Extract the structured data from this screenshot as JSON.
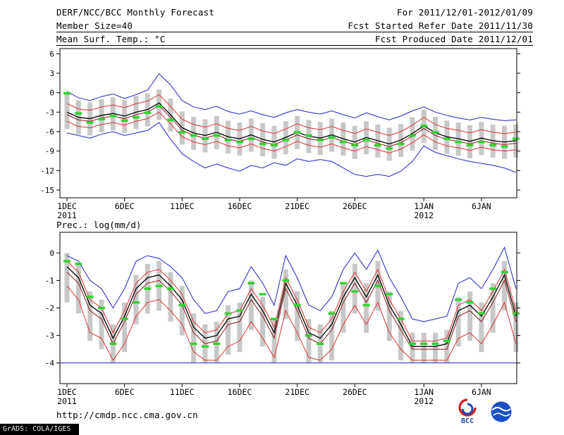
{
  "header": {
    "title": "DERF/NCC/BCC Monthly Forecast",
    "member_size": "Member Size=40",
    "forecast_range": "For 2011/12/01-2012/01/09",
    "refer_date": "Fcst Started Refer Date 2011/11/30",
    "produced_date": "Fcst Produced Date 2011/12/01"
  },
  "footer": {
    "url": "http://cmdp.ncc.cma.gov.cn",
    "bcc_logo_label": "BCC",
    "grads_credit": "GrADS: COLA/IGES"
  },
  "colors": {
    "envelope_blue": "#2222cc",
    "quartile_red": "#e03232",
    "mean_black": "#000000",
    "control_darkred": "#8b1a1a",
    "observation_green": "#2ed52e",
    "spread_gray": "#c8c8c8"
  },
  "chart_data": [
    {
      "name": "temperature",
      "type": "line",
      "title": "Mean Surf. Temp.: °C",
      "x_unit": "day",
      "n_days": 40,
      "ylim": [
        -15,
        6
      ],
      "yticks": [
        6,
        3,
        0,
        -3,
        -6,
        -9,
        -12,
        -15
      ],
      "xticks": [
        {
          "day_index": 0,
          "label": "1DEC",
          "sublabel": "2011"
        },
        {
          "day_index": 5,
          "label": "6DEC"
        },
        {
          "day_index": 10,
          "label": "11DEC"
        },
        {
          "day_index": 15,
          "label": "16DEC"
        },
        {
          "day_index": 20,
          "label": "21DEC"
        },
        {
          "day_index": 25,
          "label": "26DEC"
        },
        {
          "day_index": 31,
          "label": "1JAN",
          "sublabel": "2012"
        },
        {
          "day_index": 36,
          "label": "6JAN"
        }
      ],
      "bars": {
        "name": "ensemble-spread",
        "color": "#c8c8c8",
        "top": [
          -0.2,
          -1.2,
          -1.5,
          -1.0,
          -0.7,
          -1.1,
          -0.5,
          -0.1,
          0.5,
          -0.9,
          -2.9,
          -3.7,
          -4.1,
          -3.6,
          -4.3,
          -4.6,
          -4.0,
          -4.7,
          -5.1,
          -4.4,
          -3.6,
          -4.2,
          -4.5,
          -4.0,
          -4.6,
          -5.1,
          -4.4,
          -4.9,
          -5.4,
          -4.8,
          -3.8,
          -2.6,
          -3.7,
          -4.3,
          -4.6,
          -5.0,
          -4.5,
          -4.9,
          -5.1,
          -4.9
        ],
        "bottom": [
          -5.6,
          -6.4,
          -6.6,
          -6.1,
          -5.8,
          -6.2,
          -5.6,
          -5.2,
          -4.2,
          -6.0,
          -8.0,
          -8.8,
          -9.2,
          -8.7,
          -9.4,
          -9.7,
          -9.1,
          -9.8,
          -10.2,
          -9.5,
          -8.7,
          -9.3,
          -9.6,
          -9.1,
          -9.7,
          -10.2,
          -9.5,
          -10.0,
          -10.5,
          -9.9,
          -8.9,
          -7.7,
          -8.8,
          -9.4,
          -9.7,
          -10.1,
          -9.6,
          -10.0,
          -10.2,
          -10.0
        ]
      },
      "series": [
        {
          "name": "ensemble-max",
          "color": "#2222cc",
          "style": "line",
          "width": 1,
          "values": [
            0.2,
            -0.8,
            -1.2,
            -0.6,
            -0.2,
            -0.9,
            -0.3,
            0.4,
            2.9,
            1.2,
            -1.2,
            -2.2,
            -2.6,
            -2.1,
            -2.9,
            -3.3,
            -2.8,
            -3.4,
            -3.8,
            -3.1,
            -2.6,
            -3.0,
            -3.3,
            -2.8,
            -3.4,
            -3.9,
            -3.1,
            -3.7,
            -4.2,
            -3.6,
            -2.8,
            -2.2,
            -3.0,
            -3.5,
            -3.9,
            -4.2,
            -3.8,
            -4.1,
            -4.3,
            -4.2
          ]
        },
        {
          "name": "ensemble-min",
          "color": "#2222cc",
          "style": "line",
          "width": 1,
          "values": [
            -6.2,
            -6.6,
            -7.0,
            -6.4,
            -6.0,
            -6.6,
            -6.2,
            -5.8,
            -4.6,
            -7.2,
            -9.4,
            -10.6,
            -11.6,
            -11.0,
            -11.6,
            -12.1,
            -11.2,
            -11.6,
            -10.8,
            -11.2,
            -10.2,
            -10.6,
            -10.3,
            -10.6,
            -11.6,
            -12.6,
            -12.9,
            -12.6,
            -12.9,
            -12.1,
            -10.6,
            -8.2,
            -9.2,
            -9.7,
            -10.2,
            -10.6,
            -10.9,
            -11.2,
            -11.6,
            -12.3
          ]
        },
        {
          "name": "upper-quartile",
          "color": "#e03232",
          "style": "line",
          "width": 1,
          "values": [
            -1.7,
            -2.5,
            -2.7,
            -2.2,
            -1.9,
            -2.3,
            -1.7,
            -1.3,
            -0.3,
            -2.1,
            -4.1,
            -4.9,
            -5.3,
            -4.8,
            -5.5,
            -5.8,
            -5.2,
            -5.9,
            -6.3,
            -5.6,
            -4.8,
            -5.4,
            -5.7,
            -5.2,
            -5.8,
            -6.3,
            -5.6,
            -6.1,
            -6.6,
            -6.0,
            -5.0,
            -3.8,
            -4.9,
            -5.5,
            -5.8,
            -6.2,
            -5.7,
            -6.1,
            -6.3,
            -6.1
          ]
        },
        {
          "name": "lower-quartile",
          "color": "#e03232",
          "style": "line",
          "width": 1,
          "values": [
            -4.4,
            -5.2,
            -5.4,
            -4.9,
            -4.6,
            -5.0,
            -4.4,
            -4.0,
            -3.0,
            -4.8,
            -6.8,
            -7.6,
            -8.0,
            -7.5,
            -8.2,
            -8.5,
            -7.9,
            -8.6,
            -9.0,
            -8.3,
            -7.5,
            -8.1,
            -8.4,
            -7.9,
            -8.5,
            -9.0,
            -8.3,
            -8.8,
            -9.3,
            -8.7,
            -7.7,
            -6.5,
            -7.6,
            -8.2,
            -8.5,
            -8.9,
            -8.4,
            -8.8,
            -9.0,
            -8.8
          ]
        },
        {
          "name": "control-run",
          "color": "#8b1a1a",
          "style": "line",
          "width": 1,
          "values": [
            -3.4,
            -4.2,
            -4.4,
            -3.9,
            -3.6,
            -4.0,
            -3.4,
            -3.0,
            -2.0,
            -3.8,
            -5.8,
            -6.6,
            -7.0,
            -6.5,
            -7.2,
            -7.5,
            -6.9,
            -7.6,
            -8.0,
            -7.3,
            -6.5,
            -7.1,
            -7.4,
            -6.9,
            -7.5,
            -8.0,
            -7.3,
            -7.8,
            -8.3,
            -7.7,
            -6.7,
            -5.5,
            -6.6,
            -7.2,
            -7.5,
            -7.9,
            -7.4,
            -7.8,
            -8.0,
            -7.8
          ]
        },
        {
          "name": "ensemble-mean",
          "color": "#000000",
          "style": "line",
          "width": 1.3,
          "values": [
            -3.0,
            -3.8,
            -4.0,
            -3.5,
            -3.2,
            -3.6,
            -3.0,
            -2.6,
            -1.6,
            -3.4,
            -5.4,
            -6.2,
            -6.6,
            -6.1,
            -6.8,
            -7.1,
            -6.5,
            -7.2,
            -7.6,
            -6.9,
            -6.1,
            -6.7,
            -7.0,
            -6.5,
            -7.1,
            -7.6,
            -6.9,
            -7.4,
            -7.9,
            -7.3,
            -6.3,
            -5.1,
            -6.2,
            -6.8,
            -7.1,
            -7.5,
            -7.0,
            -7.4,
            -7.6,
            -7.4
          ]
        },
        {
          "name": "observation",
          "color": "#2ed52e",
          "style": "dash",
          "values": [
            -0.1,
            -3.2,
            -4.6,
            -4.1,
            -3.6,
            -4.3,
            -3.8,
            -3.1,
            -2.1,
            -4.2,
            -6.1,
            -6.6,
            -7.1,
            -6.6,
            -7.3,
            -7.6,
            -7.1,
            -7.9,
            -8.1,
            -7.3,
            -6.1,
            -6.6,
            -7.3,
            -6.9,
            -7.6,
            -8.1,
            -7.3,
            -8.1,
            -8.6,
            -7.9,
            -6.6,
            -5.1,
            -6.1,
            -7.1,
            -7.6,
            -8.1,
            -7.6,
            -8.1,
            -8.3,
            -7.1
          ]
        }
      ]
    },
    {
      "name": "precipitation",
      "type": "line",
      "title": "Prec.: log(mm/d)",
      "x_unit": "day",
      "n_days": 40,
      "ylim": [
        -4,
        0
      ],
      "yticks": [
        0,
        -1,
        -2,
        -3,
        -4
      ],
      "xticks": [
        {
          "day_index": 0,
          "label": "1DEC",
          "sublabel": "2011"
        },
        {
          "day_index": 5,
          "label": "6DEC"
        },
        {
          "day_index": 10,
          "label": "11DEC"
        },
        {
          "day_index": 15,
          "label": "16DEC"
        },
        {
          "day_index": 20,
          "label": "21DEC"
        },
        {
          "day_index": 25,
          "label": "26DEC"
        },
        {
          "day_index": 31,
          "label": "1JAN",
          "sublabel": "2012"
        },
        {
          "day_index": 36,
          "label": "6JAN"
        }
      ],
      "bars": {
        "name": "ensemble-spread",
        "color": "#c8c8c8",
        "top": [
          0.0,
          -0.4,
          -1.4,
          -1.7,
          -2.6,
          -1.8,
          -0.8,
          -0.4,
          -0.3,
          -0.7,
          -1.2,
          -2.2,
          -2.6,
          -2.5,
          -1.9,
          -1.8,
          -1.0,
          -1.6,
          -2.4,
          -0.6,
          -1.4,
          -2.4,
          -2.6,
          -2.1,
          -1.1,
          -0.4,
          -1.1,
          -0.3,
          -1.4,
          -2.1,
          -2.9,
          -2.9,
          -2.9,
          -2.8,
          -1.6,
          -1.4,
          -1.8,
          -1.1,
          -0.3,
          -1.8
        ],
        "bottom": [
          -1.8,
          -2.2,
          -3.2,
          -3.5,
          -4.0,
          -3.6,
          -2.6,
          -2.2,
          -2.1,
          -2.5,
          -3.0,
          -4.0,
          -4.0,
          -4.0,
          -3.7,
          -3.6,
          -2.8,
          -3.4,
          -4.0,
          -2.4,
          -3.2,
          -4.0,
          -4.0,
          -3.9,
          -2.9,
          -2.2,
          -2.9,
          -2.1,
          -3.2,
          -3.9,
          -4.0,
          -4.0,
          -4.0,
          -4.0,
          -3.4,
          -3.2,
          -3.6,
          -2.9,
          -2.1,
          -3.6
        ]
      },
      "series": [
        {
          "name": "ensemble-max",
          "color": "#2222cc",
          "style": "line",
          "width": 1,
          "values": [
            -0.1,
            -0.3,
            -1.0,
            -1.3,
            -2.0,
            -1.3,
            -0.3,
            -0.1,
            -0.2,
            -0.5,
            -0.9,
            -1.7,
            -2.2,
            -2.1,
            -1.4,
            -1.3,
            -0.5,
            -1.1,
            -1.9,
            -0.1,
            -0.9,
            -1.9,
            -2.1,
            -1.6,
            -0.6,
            0.0,
            -0.6,
            0.1,
            -0.9,
            -1.6,
            -2.4,
            -2.5,
            -2.4,
            -2.3,
            -1.1,
            -0.9,
            -1.3,
            -0.6,
            0.2,
            -1.3
          ]
        },
        {
          "name": "detection-floor",
          "color": "#2222cc",
          "style": "hline",
          "value": -4
        },
        {
          "name": "upper-quartile",
          "color": "#e03232",
          "style": "line",
          "width": 1,
          "values": [
            -0.3,
            -0.7,
            -1.7,
            -2.0,
            -2.9,
            -2.1,
            -1.1,
            -0.7,
            -0.6,
            -1.0,
            -1.5,
            -2.5,
            -2.9,
            -2.8,
            -2.2,
            -2.1,
            -1.3,
            -1.9,
            -2.7,
            -0.9,
            -1.7,
            -2.7,
            -2.9,
            -2.4,
            -1.4,
            -0.7,
            -1.4,
            -0.6,
            -1.7,
            -2.4,
            -3.2,
            -3.2,
            -3.2,
            -3.1,
            -1.9,
            -1.7,
            -2.1,
            -1.4,
            -0.6,
            -2.1
          ]
        },
        {
          "name": "lower-quartile",
          "color": "#e03232",
          "style": "line",
          "width": 1,
          "values": [
            -1.2,
            -1.7,
            -2.9,
            -3.1,
            -3.9,
            -3.3,
            -2.3,
            -1.8,
            -1.7,
            -2.1,
            -2.6,
            -3.6,
            -3.9,
            -3.9,
            -3.4,
            -3.2,
            -2.5,
            -3.1,
            -3.8,
            -2.1,
            -2.9,
            -3.8,
            -3.9,
            -3.5,
            -2.6,
            -1.9,
            -2.6,
            -1.8,
            -2.9,
            -3.5,
            -3.9,
            -3.9,
            -3.9,
            -3.9,
            -3.1,
            -2.9,
            -3.3,
            -2.6,
            -1.8,
            -3.3
          ]
        },
        {
          "name": "control-run",
          "color": "#8b1a1a",
          "style": "line",
          "width": 1,
          "values": [
            -0.7,
            -1.1,
            -2.1,
            -2.4,
            -3.3,
            -2.5,
            -1.5,
            -1.1,
            -1.0,
            -1.4,
            -1.9,
            -2.9,
            -3.3,
            -3.2,
            -2.6,
            -2.5,
            -1.7,
            -2.3,
            -3.1,
            -1.3,
            -2.1,
            -3.1,
            -3.3,
            -2.8,
            -1.8,
            -1.1,
            -1.8,
            -1.0,
            -2.1,
            -2.8,
            -3.5,
            -3.5,
            -3.5,
            -3.5,
            -2.3,
            -2.1,
            -2.5,
            -1.8,
            -1.0,
            -2.5
          ]
        },
        {
          "name": "ensemble-mean",
          "color": "#000000",
          "style": "line",
          "width": 1.3,
          "values": [
            -0.5,
            -0.9,
            -1.9,
            -2.2,
            -3.1,
            -2.3,
            -1.3,
            -0.9,
            -0.8,
            -1.2,
            -1.7,
            -2.7,
            -3.1,
            -3.0,
            -2.4,
            -2.3,
            -1.5,
            -2.1,
            -2.9,
            -1.1,
            -1.9,
            -2.9,
            -3.1,
            -2.6,
            -1.6,
            -0.9,
            -1.6,
            -0.8,
            -1.9,
            -2.6,
            -3.4,
            -3.4,
            -3.4,
            -3.3,
            -2.1,
            -1.9,
            -2.3,
            -1.6,
            -0.8,
            -2.3
          ]
        },
        {
          "name": "observation",
          "color": "#2ed52e",
          "style": "dash",
          "values": [
            -0.3,
            -0.4,
            -1.6,
            -2.0,
            -3.3,
            -2.4,
            -1.8,
            -1.3,
            -1.2,
            -1.3,
            -1.9,
            -3.3,
            -3.4,
            -3.3,
            -2.2,
            -2.1,
            -1.1,
            -1.5,
            -2.4,
            -1.0,
            -1.9,
            -3.0,
            -3.3,
            -2.2,
            -1.1,
            -1.4,
            -1.9,
            -1.2,
            -1.5,
            -2.4,
            -3.3,
            -3.3,
            -3.3,
            -3.2,
            -1.7,
            -1.8,
            -2.2,
            -1.3,
            -0.7,
            -2.2
          ]
        }
      ]
    }
  ]
}
